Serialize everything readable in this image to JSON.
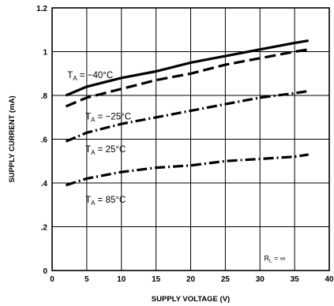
{
  "chart_data": {
    "type": "line",
    "title": "",
    "xlabel": "SUPPLY VOLTAGE (V)",
    "ylabel": "SUPPLY CURRENT (mA)",
    "xlim": [
      0,
      40
    ],
    "ylim": [
      0,
      1.2
    ],
    "x_ticks": [
      0,
      5,
      10,
      15,
      20,
      25,
      30,
      35,
      40
    ],
    "x_tick_labels": [
      "0",
      "5",
      "10",
      "15",
      "20",
      "25",
      "30",
      "35",
      "40"
    ],
    "y_ticks": [
      0,
      0.2,
      0.4,
      0.6,
      0.8,
      1.0,
      1.2
    ],
    "y_tick_labels": [
      "0",
      ".2",
      ".4",
      ".6",
      ".8",
      "1",
      "1.2"
    ],
    "grid": true,
    "annotation": {
      "prefix": "R",
      "sub": "L",
      "text": " = ∞"
    },
    "series": [
      {
        "label": {
          "prefix": "T",
          "sub": "A",
          "text": " = −40°C"
        },
        "line_style": "solid",
        "x": [
          2,
          5,
          10,
          15,
          20,
          25,
          30,
          35,
          37
        ],
        "y": [
          0.8,
          0.84,
          0.88,
          0.91,
          0.95,
          0.98,
          1.01,
          1.04,
          1.05
        ]
      },
      {
        "label": {
          "prefix": "T",
          "sub": "A",
          "text": " = −25°C"
        },
        "line_style": "long-dash",
        "x": [
          2,
          5,
          10,
          15,
          20,
          25,
          30,
          35,
          37
        ],
        "y": [
          0.75,
          0.79,
          0.83,
          0.87,
          0.9,
          0.94,
          0.97,
          1.0,
          1.01
        ]
      },
      {
        "label": {
          "prefix": "T",
          "sub": "A",
          "text": " = 25°C"
        },
        "line_style": "dash-dot",
        "x": [
          2,
          5,
          10,
          15,
          20,
          25,
          30,
          35,
          37
        ],
        "y": [
          0.59,
          0.63,
          0.67,
          0.7,
          0.73,
          0.76,
          0.79,
          0.81,
          0.82
        ]
      },
      {
        "label": {
          "prefix": "T",
          "sub": "A",
          "text": " = 85°C"
        },
        "line_style": "dash-dot",
        "x": [
          2,
          5,
          10,
          15,
          20,
          25,
          30,
          35,
          37
        ],
        "y": [
          0.39,
          0.42,
          0.45,
          0.47,
          0.48,
          0.5,
          0.51,
          0.52,
          0.53
        ]
      }
    ]
  }
}
